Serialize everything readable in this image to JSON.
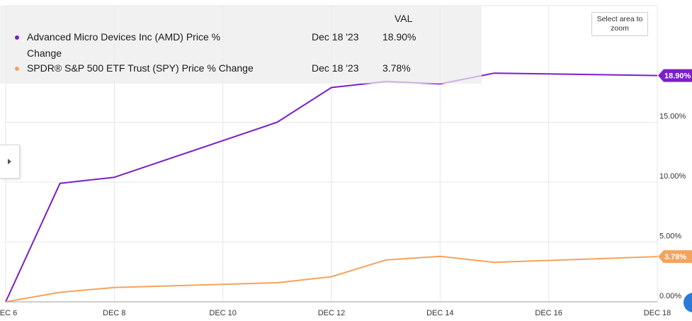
{
  "legend": {
    "header": "VAL",
    "rows": [
      {
        "name": "Advanced Micro Devices Inc (AMD) Price % Change",
        "date": "Dec 18 '23",
        "value": "18.90%",
        "color": "#7a1fc9"
      },
      {
        "name": "SPDR® S&P 500 ETF Trust (SPY) Price % Change",
        "date": "Dec 18 '23",
        "value": "3.78%",
        "color": "#f5a35c"
      }
    ]
  },
  "controls": {
    "zoom_label": "Select area to zoom",
    "side_tab_icon": "chevron-right-icon"
  },
  "chart_data": {
    "type": "line",
    "x": [
      "2023-12-06",
      "2023-12-07",
      "2023-12-08",
      "2023-12-11",
      "2023-12-12",
      "2023-12-13",
      "2023-12-14",
      "2023-12-15",
      "2023-12-18"
    ],
    "x_ticks": [
      "DEC 6",
      "DEC 8",
      "DEC 10",
      "DEC 12",
      "DEC 14",
      "DEC 16",
      "DEC 18"
    ],
    "y_ticks": [
      "0.00%",
      "5.00%",
      "10.00%",
      "15.00%"
    ],
    "ylim": [
      0,
      20
    ],
    "grid": true,
    "series": [
      {
        "name": "Advanced Micro Devices Inc (AMD) Price % Change",
        "color": "#7a1fc9",
        "values": [
          0.0,
          9.9,
          10.4,
          15.0,
          17.9,
          18.4,
          18.2,
          19.1,
          18.9
        ],
        "end_label": "18.90%"
      },
      {
        "name": "SPDR® S&P 500 ETF Trust (SPY) Price % Change",
        "color": "#f5a35c",
        "values": [
          0.0,
          0.8,
          1.2,
          1.6,
          2.1,
          3.5,
          3.8,
          3.3,
          3.78
        ],
        "end_label": "3.78%"
      }
    ]
  }
}
